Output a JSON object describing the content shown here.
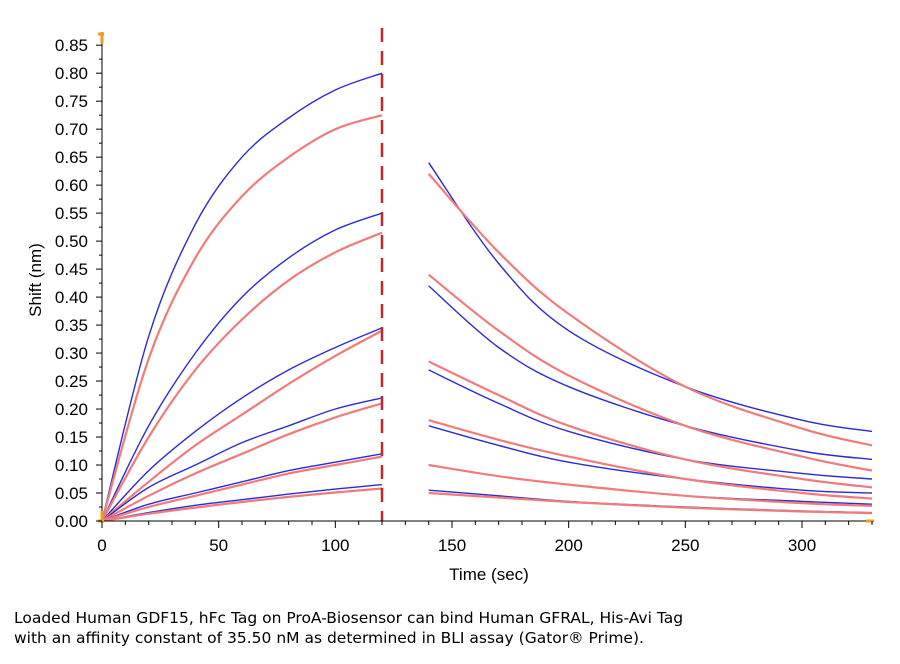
{
  "chart_data": {
    "type": "line",
    "title": "",
    "xlabel": "Time (sec)",
    "ylabel": "Shift (nm)",
    "xlim": [
      0,
      330
    ],
    "ylim": [
      0,
      0.87
    ],
    "x_ticks": [
      0,
      50,
      100,
      150,
      200,
      250,
      300
    ],
    "y_ticks": [
      0.0,
      0.05,
      0.1,
      0.15,
      0.2,
      0.25,
      0.3,
      0.35,
      0.4,
      0.45,
      0.5,
      0.55,
      0.6,
      0.65,
      0.7,
      0.75,
      0.8,
      0.85
    ],
    "x_tick_labels": [
      "0",
      "50",
      "100",
      "150",
      "200",
      "250",
      "300"
    ],
    "y_tick_labels": [
      "0.00",
      "0.05",
      "0.10",
      "0.15",
      "0.20",
      "0.25",
      "0.30",
      "0.35",
      "0.40",
      "0.45",
      "0.50",
      "0.55",
      "0.60",
      "0.65",
      "0.70",
      "0.75",
      "0.80",
      "0.85"
    ],
    "association_end_x": 120,
    "marker_color": "#c0282d",
    "measured_color": "#2b2bd6",
    "fit_color": "#f07b7b",
    "series": [
      {
        "kind": "measured",
        "x": [
          0,
          20,
          40,
          60,
          80,
          100,
          120,
          140,
          170,
          200,
          250,
          300,
          330
        ],
        "y": [
          0,
          0.33,
          0.53,
          0.65,
          0.72,
          0.77,
          0.8,
          0.64,
          0.46,
          0.34,
          0.24,
          0.18,
          0.16
        ]
      },
      {
        "kind": "fit",
        "x": [
          0,
          20,
          40,
          60,
          80,
          100,
          120,
          140,
          170,
          200,
          250,
          300,
          330
        ],
        "y": [
          0,
          0.29,
          0.47,
          0.58,
          0.65,
          0.7,
          0.725,
          0.62,
          0.48,
          0.37,
          0.24,
          0.165,
          0.135
        ]
      },
      {
        "kind": "measured",
        "x": [
          0,
          20,
          40,
          60,
          80,
          100,
          120,
          140,
          170,
          200,
          250,
          300,
          330
        ],
        "y": [
          0,
          0.17,
          0.3,
          0.4,
          0.47,
          0.52,
          0.55,
          0.42,
          0.31,
          0.24,
          0.17,
          0.125,
          0.11
        ]
      },
      {
        "kind": "fit",
        "x": [
          0,
          20,
          40,
          60,
          80,
          100,
          120,
          140,
          170,
          200,
          250,
          300,
          330
        ],
        "y": [
          0,
          0.15,
          0.27,
          0.36,
          0.43,
          0.48,
          0.515,
          0.44,
          0.34,
          0.26,
          0.17,
          0.115,
          0.09
        ]
      },
      {
        "kind": "measured",
        "x": [
          0,
          20,
          40,
          60,
          80,
          100,
          120,
          140,
          170,
          200,
          250,
          300,
          330
        ],
        "y": [
          0,
          0.09,
          0.16,
          0.22,
          0.27,
          0.31,
          0.345,
          0.27,
          0.21,
          0.16,
          0.11,
          0.085,
          0.075
        ]
      },
      {
        "kind": "fit",
        "x": [
          0,
          20,
          40,
          60,
          80,
          100,
          120,
          140,
          170,
          200,
          250,
          300,
          330
        ],
        "y": [
          0,
          0.07,
          0.135,
          0.19,
          0.245,
          0.295,
          0.34,
          0.285,
          0.225,
          0.17,
          0.11,
          0.075,
          0.06
        ]
      },
      {
        "kind": "measured",
        "x": [
          0,
          20,
          40,
          60,
          80,
          100,
          120,
          140,
          170,
          200,
          250,
          300,
          330
        ],
        "y": [
          0,
          0.06,
          0.1,
          0.14,
          0.17,
          0.2,
          0.22,
          0.17,
          0.135,
          0.105,
          0.075,
          0.055,
          0.05
        ]
      },
      {
        "kind": "fit",
        "x": [
          0,
          20,
          40,
          60,
          80,
          100,
          120,
          140,
          170,
          200,
          250,
          300,
          330
        ],
        "y": [
          0,
          0.045,
          0.085,
          0.12,
          0.155,
          0.185,
          0.21,
          0.18,
          0.145,
          0.115,
          0.075,
          0.05,
          0.04
        ]
      },
      {
        "kind": "measured",
        "x": [
          0,
          20,
          40,
          60,
          80,
          100,
          120,
          140,
          170,
          200,
          250,
          300,
          330
        ],
        "y": [
          0,
          0.03,
          0.05,
          0.07,
          0.09,
          0.105,
          0.12,
          0.1,
          0.08,
          0.065,
          0.045,
          0.035,
          0.03
        ]
      },
      {
        "kind": "fit",
        "x": [
          0,
          20,
          40,
          60,
          80,
          100,
          120,
          140,
          170,
          200,
          250,
          300,
          330
        ],
        "y": [
          0,
          0.025,
          0.045,
          0.065,
          0.085,
          0.1,
          0.115,
          0.1,
          0.08,
          0.065,
          0.045,
          0.032,
          0.027
        ]
      },
      {
        "kind": "measured",
        "x": [
          0,
          20,
          40,
          60,
          80,
          100,
          120,
          140,
          170,
          200,
          250,
          300,
          330
        ],
        "y": [
          0,
          0.015,
          0.028,
          0.038,
          0.048,
          0.057,
          0.065,
          0.055,
          0.045,
          0.035,
          0.025,
          0.018,
          0.015
        ]
      },
      {
        "kind": "fit",
        "x": [
          0,
          20,
          40,
          60,
          80,
          100,
          120,
          140,
          170,
          200,
          250,
          300,
          330
        ],
        "y": [
          0,
          0.013,
          0.024,
          0.034,
          0.043,
          0.051,
          0.058,
          0.05,
          0.042,
          0.034,
          0.024,
          0.017,
          0.014
        ]
      }
    ]
  },
  "caption": {
    "line1": "Loaded Human GDF15, hFc Tag on ProA-Biosensor can bind Human GFRAL, His-Avi Tag",
    "line2": "with an affinity constant of 35.50 nM as determined in BLI assay (Gator® Prime)."
  }
}
